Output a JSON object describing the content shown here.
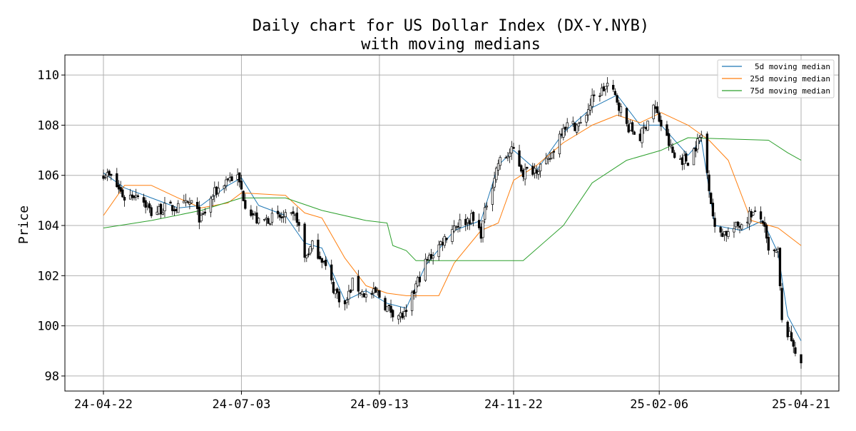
{
  "chart_data": {
    "type": "candlestick",
    "title": "Daily chart for US Dollar Index (DX-Y.NYB)",
    "subtitle": "with moving medians",
    "xlabel": "",
    "ylabel": "Price",
    "x_range": [
      "2024-04-22",
      "2025-04-21"
    ],
    "ylim": [
      97.4,
      110.8
    ],
    "x_ticks": [
      "24-04-22",
      "24-07-03",
      "24-09-13",
      "24-11-22",
      "25-02-06",
      "25-04-21"
    ],
    "y_ticks": [
      98,
      100,
      102,
      104,
      106,
      108,
      110
    ],
    "grid": true,
    "legend_position": "top-right",
    "colors": {
      "candle": "#000000",
      "ma5": "#1f77b4",
      "ma25": "#ff7f0e",
      "ma75": "#2ca02c",
      "grid": "#b0b0b0"
    },
    "close_keypoints": [
      [
        "2024-04-22",
        106.1
      ],
      [
        "2024-04-26",
        105.9
      ],
      [
        "2024-05-03",
        105.1
      ],
      [
        "2024-05-10",
        105.3
      ],
      [
        "2024-05-17",
        104.5
      ],
      [
        "2024-05-24",
        104.7
      ],
      [
        "2024-05-31",
        104.7
      ],
      [
        "2024-06-07",
        104.9
      ],
      [
        "2024-06-12",
        104.2
      ],
      [
        "2024-06-18",
        105.2
      ],
      [
        "2024-06-26",
        105.9
      ],
      [
        "2024-07-01",
        105.9
      ],
      [
        "2024-07-05",
        104.9
      ],
      [
        "2024-07-12",
        104.1
      ],
      [
        "2024-07-18",
        104.3
      ],
      [
        "2024-07-26",
        104.3
      ],
      [
        "2024-08-01",
        104.3
      ],
      [
        "2024-08-05",
        102.7
      ],
      [
        "2024-08-09",
        103.2
      ],
      [
        "2024-08-14",
        102.7
      ],
      [
        "2024-08-20",
        101.5
      ],
      [
        "2024-08-26",
        100.8
      ],
      [
        "2024-08-30",
        101.7
      ],
      [
        "2024-09-06",
        101.2
      ],
      [
        "2024-09-12",
        101.3
      ],
      [
        "2024-09-17",
        100.7
      ],
      [
        "2024-09-24",
        100.4
      ],
      [
        "2024-09-27",
        100.4
      ],
      [
        "2024-10-02",
        101.6
      ],
      [
        "2024-10-07",
        102.5
      ],
      [
        "2024-10-14",
        103.2
      ],
      [
        "2024-10-22",
        104.0
      ],
      [
        "2024-10-31",
        104.3
      ],
      [
        "2024-11-05",
        103.7
      ],
      [
        "2024-11-08",
        104.9
      ],
      [
        "2024-11-14",
        106.5
      ],
      [
        "2024-11-22",
        107.0
      ],
      [
        "2024-11-27",
        106.1
      ],
      [
        "2024-12-04",
        106.3
      ],
      [
        "2024-12-10",
        106.5
      ],
      [
        "2024-12-18",
        108.0
      ],
      [
        "2024-12-27",
        108.0
      ],
      [
        "2025-01-02",
        109.0
      ],
      [
        "2025-01-10",
        109.6
      ],
      [
        "2025-01-15",
        109.0
      ],
      [
        "2025-01-20",
        108.0
      ],
      [
        "2025-01-27",
        107.5
      ],
      [
        "2025-02-03",
        108.8
      ],
      [
        "2025-02-07",
        108.0
      ],
      [
        "2025-02-14",
        106.7
      ],
      [
        "2025-02-21",
        106.6
      ],
      [
        "2025-02-28",
        107.6
      ],
      [
        "2025-03-04",
        105.6
      ],
      [
        "2025-03-07",
        103.8
      ],
      [
        "2025-03-14",
        103.7
      ],
      [
        "2025-03-21",
        104.1
      ],
      [
        "2025-03-26",
        104.5
      ],
      [
        "2025-04-01",
        104.2
      ],
      [
        "2025-04-04",
        102.9
      ],
      [
        "2025-04-09",
        102.9
      ],
      [
        "2025-04-11",
        100.1
      ],
      [
        "2025-04-17",
        99.3
      ],
      [
        "2025-04-21",
        98.3
      ]
    ],
    "series": [
      {
        "name": "5d moving median",
        "color": "#1f77b4",
        "points": [
          [
            "2024-04-22",
            106.1
          ],
          [
            "2024-05-03",
            105.5
          ],
          [
            "2024-05-17",
            105.1
          ],
          [
            "2024-05-31",
            104.7
          ],
          [
            "2024-06-12",
            104.8
          ],
          [
            "2024-06-26",
            105.6
          ],
          [
            "2024-07-03",
            105.9
          ],
          [
            "2024-07-12",
            104.8
          ],
          [
            "2024-07-26",
            104.4
          ],
          [
            "2024-08-05",
            103.3
          ],
          [
            "2024-08-14",
            103.1
          ],
          [
            "2024-08-26",
            101.0
          ],
          [
            "2024-09-06",
            101.4
          ],
          [
            "2024-09-17",
            100.9
          ],
          [
            "2024-09-27",
            100.7
          ],
          [
            "2024-10-07",
            102.4
          ],
          [
            "2024-10-22",
            103.8
          ],
          [
            "2024-11-05",
            104.2
          ],
          [
            "2024-11-14",
            106.4
          ],
          [
            "2024-11-22",
            107.0
          ],
          [
            "2024-12-04",
            106.2
          ],
          [
            "2024-12-18",
            107.7
          ],
          [
            "2025-01-02",
            108.7
          ],
          [
            "2025-01-15",
            109.2
          ],
          [
            "2025-01-27",
            108.0
          ],
          [
            "2025-02-07",
            108.0
          ],
          [
            "2025-02-21",
            106.8
          ],
          [
            "2025-02-28",
            107.4
          ],
          [
            "2025-03-07",
            104.0
          ],
          [
            "2025-03-21",
            103.8
          ],
          [
            "2025-04-01",
            104.2
          ],
          [
            "2025-04-09",
            102.9
          ],
          [
            "2025-04-14",
            100.4
          ],
          [
            "2025-04-21",
            99.4
          ]
        ]
      },
      {
        "name": "25d moving median",
        "color": "#ff7f0e",
        "points": [
          [
            "2024-04-22",
            104.4
          ],
          [
            "2024-05-03",
            105.6
          ],
          [
            "2024-05-17",
            105.6
          ],
          [
            "2024-05-31",
            105.1
          ],
          [
            "2024-06-12",
            104.7
          ],
          [
            "2024-06-26",
            104.9
          ],
          [
            "2024-07-03",
            105.3
          ],
          [
            "2024-07-26",
            105.2
          ],
          [
            "2024-08-05",
            104.5
          ],
          [
            "2024-08-14",
            104.3
          ],
          [
            "2024-08-26",
            102.7
          ],
          [
            "2024-09-06",
            101.6
          ],
          [
            "2024-09-17",
            101.3
          ],
          [
            "2024-09-27",
            101.2
          ],
          [
            "2024-10-14",
            101.2
          ],
          [
            "2024-10-22",
            102.5
          ],
          [
            "2024-11-05",
            103.8
          ],
          [
            "2024-11-14",
            104.1
          ],
          [
            "2024-11-22",
            105.8
          ],
          [
            "2024-12-04",
            106.4
          ],
          [
            "2024-12-18",
            107.3
          ],
          [
            "2025-01-02",
            108.0
          ],
          [
            "2025-01-15",
            108.4
          ],
          [
            "2025-01-27",
            108.1
          ],
          [
            "2025-02-07",
            108.5
          ],
          [
            "2025-02-21",
            108.0
          ],
          [
            "2025-03-04",
            107.4
          ],
          [
            "2025-03-14",
            106.6
          ],
          [
            "2025-03-26",
            104.2
          ],
          [
            "2025-04-09",
            103.9
          ],
          [
            "2025-04-21",
            103.2
          ]
        ]
      },
      {
        "name": "75d moving median",
        "color": "#2ca02c",
        "points": [
          [
            "2024-04-22",
            103.9
          ],
          [
            "2024-05-17",
            104.2
          ],
          [
            "2024-06-12",
            104.6
          ],
          [
            "2024-07-03",
            105.1
          ],
          [
            "2024-07-26",
            105.1
          ],
          [
            "2024-08-14",
            104.6
          ],
          [
            "2024-09-06",
            104.2
          ],
          [
            "2024-09-17",
            104.1
          ],
          [
            "2024-09-20",
            103.2
          ],
          [
            "2024-09-27",
            103.0
          ],
          [
            "2024-10-02",
            102.6
          ],
          [
            "2024-11-27",
            102.6
          ],
          [
            "2024-12-18",
            104.0
          ],
          [
            "2025-01-02",
            105.7
          ],
          [
            "2025-01-20",
            106.6
          ],
          [
            "2025-02-07",
            107.0
          ],
          [
            "2025-02-21",
            107.5
          ],
          [
            "2025-04-04",
            107.4
          ],
          [
            "2025-04-14",
            106.9
          ],
          [
            "2025-04-21",
            106.6
          ]
        ]
      }
    ]
  }
}
